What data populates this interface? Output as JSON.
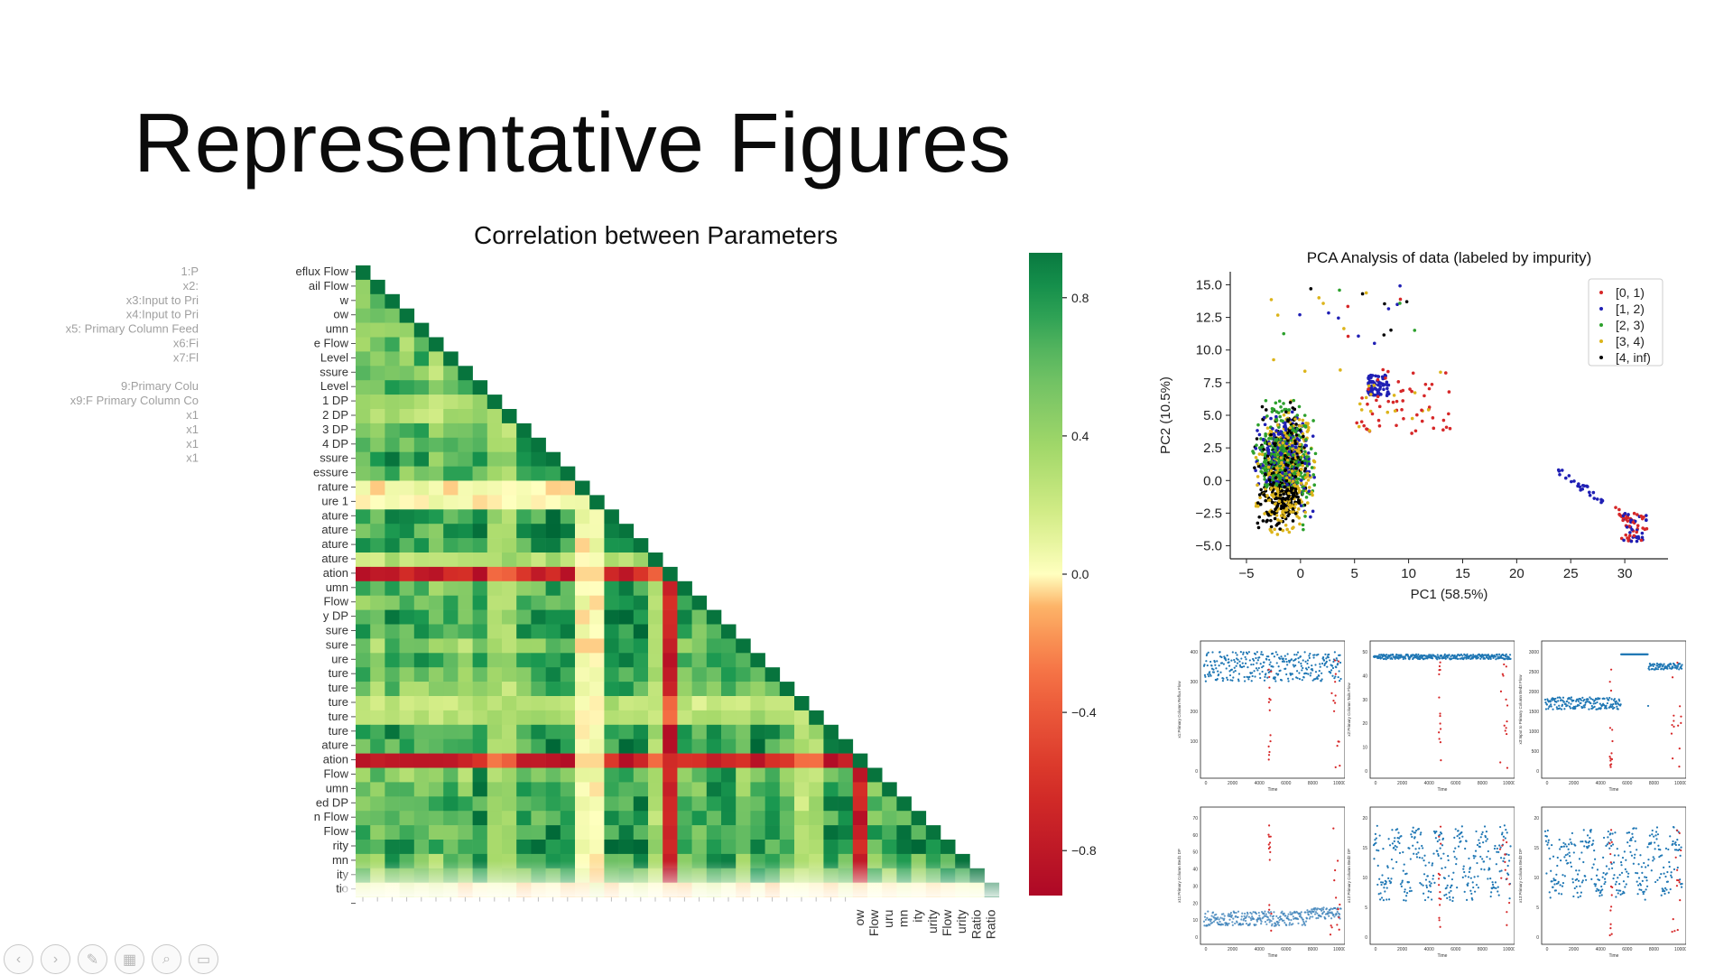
{
  "slide": {
    "title": "Representative Figures"
  },
  "colors": {
    "heat_green": "#0f7d3e",
    "heat_red": "#c41e2b",
    "blue": "#1f77b4",
    "red": "#d62728",
    "green": "#2ca02c",
    "gold": "#dcb41a",
    "black": "#000000"
  },
  "heatmap": {
    "title": "Correlation between Parameters",
    "left_labels": [
      "1:P",
      "x2:",
      "x3:Input to Pri",
      "x4:Input to Pri",
      "x5: Primary Column Feed",
      "x6:Fi",
      "x7:Fl",
      "",
      "9:Primary Colu",
      "x9:F Primary Column Co",
      "x1",
      "x1",
      "x1",
      "x1"
    ],
    "right_labels": [
      "eflux Flow",
      "ail Flow",
      "w",
      "ow",
      "umn",
      "e Flow",
      "Level",
      "ssure",
      "Level",
      "1 DP",
      "2 DP",
      "3 DP",
      "4 DP",
      "ssure",
      "essure",
      "rature",
      "ure 1",
      "ature",
      "ature",
      "ature",
      "ature",
      "ation",
      "umn",
      "Flow",
      "y DP",
      "sure",
      "sure",
      "ure",
      "ture",
      "ture",
      "ture",
      "ture",
      "ture",
      "ature",
      "ation",
      "Flow",
      "umn",
      "ed DP",
      "n Flow",
      "Flow",
      "rity",
      "mn",
      "ity",
      "tio",
      ""
    ],
    "bottom_labels": [
      "ow",
      "Flow",
      "uru",
      "mn",
      "ity",
      "urity",
      "Flow",
      "urity",
      "Ratio",
      "Ratio"
    ]
  },
  "colorbar": {
    "ticks": [
      "0.8",
      "0.4",
      "0.0",
      "−0.4",
      "−0.8"
    ]
  },
  "chart_data": [
    {
      "type": "heatmap",
      "title": "Correlation between Parameters",
      "size": 44,
      "vmin": -1,
      "vmax": 1,
      "note": "lower-triangular correlation matrix; mostly positive (green) with negatively correlated rows/columns 21 and 34 and near-zero rows 15, 16, 43"
    },
    {
      "type": "scatter",
      "title": "PCA Analysis of data (labeled by impurity)",
      "xlabel": "PC1 (58.5%)",
      "ylabel": "PC2 (10.5%)",
      "xlim": [
        -6.5,
        34
      ],
      "ylim": [
        -6,
        16
      ],
      "xticks": [
        -5,
        0,
        5,
        10,
        15,
        20,
        25,
        30
      ],
      "yticks": [
        -5.0,
        -2.5,
        0.0,
        2.5,
        5.0,
        7.5,
        10.0,
        12.5,
        15.0
      ],
      "xtick_labels": [
        "−5",
        "0",
        "5",
        "10",
        "15",
        "20",
        "25",
        "30"
      ],
      "ytick_labels": [
        "−5.0",
        "−2.5",
        "0.0",
        "2.5",
        "5.0",
        "7.5",
        "10.0",
        "12.5",
        "15.0"
      ],
      "series": [
        {
          "name": "[0, 1)",
          "color": "#d62728"
        },
        {
          "name": "[1, 2)",
          "color": "#1f1fb4"
        },
        {
          "name": "[2, 3)",
          "color": "#2ca02c"
        },
        {
          "name": "[3, 4)",
          "color": "#dcb41a"
        },
        {
          "name": "[4, inf)",
          "color": "#000000"
        }
      ]
    },
    {
      "type": "scatter",
      "panels": 6,
      "xlabel": "Time",
      "xticks": [
        0,
        2000,
        4000,
        6000,
        8000,
        10000
      ],
      "panel_ylabels": [
        "x1:Primary Column Reflux Flow",
        "x2:Primary Column Tails Flow",
        "x3:Input to Primary Column Bed3 Flow",
        "x11:Primary Column Bed1 DP",
        "x12:Primary Column Bed2 DP",
        "x13:Primary Column Bed3 DP"
      ],
      "panel_yticks": [
        [
          "0",
          "100",
          "200",
          "300",
          "400"
        ],
        [
          "0",
          "10",
          "20",
          "30",
          "40",
          "50"
        ],
        [
          "0",
          "500",
          "1000",
          "1500",
          "2000",
          "2500",
          "3000"
        ],
        [
          "0",
          "10",
          "20",
          "30",
          "40",
          "50",
          "60",
          "70"
        ],
        [
          "0",
          "5",
          "10",
          "15",
          "20"
        ],
        [
          "0",
          "5",
          "10",
          "15",
          "20"
        ]
      ]
    }
  ],
  "toolbar": {
    "buttons": [
      {
        "name": "previous-slide-button",
        "icon": "‹"
      },
      {
        "name": "next-slide-button",
        "icon": "›"
      },
      {
        "name": "pen-tool-button",
        "icon": "✎"
      },
      {
        "name": "slide-grid-button",
        "icon": "▦"
      },
      {
        "name": "zoom-button",
        "icon": "⌕"
      },
      {
        "name": "subtitle-button",
        "icon": "▭"
      }
    ]
  }
}
